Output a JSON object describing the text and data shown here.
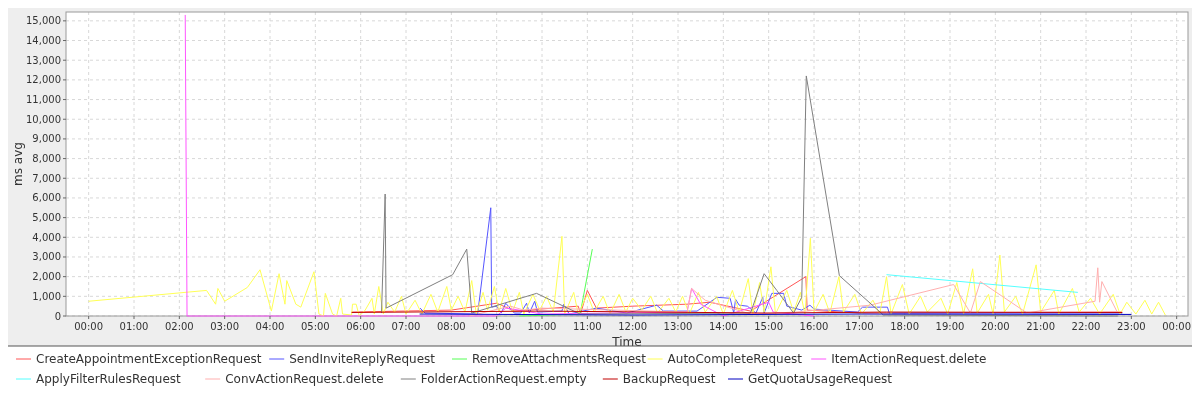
{
  "chart_data": {
    "type": "line",
    "xlabel": "Time",
    "ylabel": "ms avg",
    "legend": "bottom",
    "grid": true,
    "marker": "none",
    "line_style": "solid",
    "xlim": [
      -0.5,
      24.25
    ],
    "ylim": [
      0,
      15450
    ],
    "xticks": [
      {
        "value": 0,
        "label": "00:00"
      },
      {
        "value": 1,
        "label": "01:00"
      },
      {
        "value": 2,
        "label": "02:00"
      },
      {
        "value": 3,
        "label": "03:00"
      },
      {
        "value": 4,
        "label": "04:00"
      },
      {
        "value": 5,
        "label": "05:00"
      },
      {
        "value": 6,
        "label": "06:00"
      },
      {
        "value": 7,
        "label": "07:00"
      },
      {
        "value": 8,
        "label": "08:00"
      },
      {
        "value": 9,
        "label": "09:00"
      },
      {
        "value": 10,
        "label": "10:00"
      },
      {
        "value": 11,
        "label": "11:00"
      },
      {
        "value": 12,
        "label": "12:00"
      },
      {
        "value": 13,
        "label": "13:00"
      },
      {
        "value": 14,
        "label": "14:00"
      },
      {
        "value": 15,
        "label": "15:00"
      },
      {
        "value": 16,
        "label": "16:00"
      },
      {
        "value": 17,
        "label": "17:00"
      },
      {
        "value": 18,
        "label": "18:00"
      },
      {
        "value": 19,
        "label": "19:00"
      },
      {
        "value": 20,
        "label": "20:00"
      },
      {
        "value": 21,
        "label": "21:00"
      },
      {
        "value": 22,
        "label": "22:00"
      },
      {
        "value": 23,
        "label": "23:00"
      },
      {
        "value": 24,
        "label": "00:00"
      }
    ],
    "yticks": [
      0,
      {
        "value": 1000,
        "label": "1,000"
      },
      {
        "value": 2000,
        "label": "2,000"
      },
      {
        "value": 3000,
        "label": "3,000"
      },
      {
        "value": 4000,
        "label": "4,000"
      },
      {
        "value": 5000,
        "label": "5,000"
      },
      {
        "value": 6000,
        "label": "6,000"
      },
      {
        "value": 7000,
        "label": "7,000"
      },
      {
        "value": 8000,
        "label": "8,000"
      },
      {
        "value": 9000,
        "label": "9,000"
      },
      {
        "value": 10000,
        "label": "10,000"
      },
      {
        "value": 11000,
        "label": "11,000"
      },
      {
        "value": 12000,
        "label": "12,000"
      },
      {
        "value": 13000,
        "label": "13,000"
      },
      {
        "value": 14000,
        "label": "14,000"
      },
      {
        "value": 15000,
        "label": "15,000"
      }
    ],
    "series": [
      {
        "name": "CreateAppointmentExceptionRequest",
        "color": "#ff5555",
        "x": [
          5.8,
          8.0,
          9.0,
          9.4,
          10.8,
          10.85,
          11.0,
          11.2,
          12.0,
          13.2,
          13.7,
          14.6,
          15.82,
          15.85,
          17.0,
          22.8
        ],
        "values": [
          200,
          300,
          650,
          250,
          500,
          100,
          1300,
          400,
          500,
          600,
          700,
          250,
          2000,
          300,
          150,
          200
        ]
      },
      {
        "name": "SendInviteReplyRequest",
        "color": "#5555ff",
        "x": [
          7.31,
          7.42,
          8.58,
          8.87,
          8.89,
          9.0,
          9.1,
          9.2,
          9.39,
          9.53,
          9.66,
          9.72,
          9.84,
          9.9,
          10.44,
          10.48,
          10.6,
          11.2,
          11.87,
          12.53,
          12.68,
          13.42,
          13.86,
          14.15,
          14.23,
          14.27,
          14.35,
          14.53,
          14.72,
          14.87,
          14.9,
          15.07,
          15.33,
          15.4,
          15.73,
          15.91,
          16.0,
          16.96,
          17.07,
          17.62,
          17.66,
          22.8
        ],
        "values": [
          400,
          150,
          100,
          5500,
          450,
          500,
          150,
          650,
          150,
          150,
          650,
          150,
          750,
          200,
          250,
          600,
          100,
          400,
          150,
          550,
          250,
          250,
          950,
          900,
          150,
          850,
          550,
          500,
          150,
          950,
          150,
          1150,
          1150,
          500,
          300,
          550,
          350,
          200,
          450,
          450,
          150,
          150
        ]
      },
      {
        "name": "RemoveAttachmentsRequest",
        "color": "#55ff55",
        "x": [
          9.5,
          10.84,
          11.11
        ],
        "values": [
          0,
          100,
          3400
        ]
      },
      {
        "name": "AutoCompleteRequest",
        "color": "#ffff55",
        "x": [
          0,
          2.6,
          2.8,
          2.85,
          3.0,
          3.5,
          3.78,
          4.03,
          4.2,
          4.33,
          4.37,
          4.57,
          4.68,
          4.97,
          5.08,
          5.18,
          5.22,
          5.38,
          5.47,
          5.56,
          5.6,
          5.8,
          5.82,
          5.9,
          5.97,
          6.1,
          6.25,
          6.3,
          6.4,
          6.5,
          6.6,
          6.75,
          6.9,
          7.0,
          7.2,
          7.35,
          7.55,
          7.7,
          7.9,
          8.0,
          8.15,
          8.3,
          8.45,
          8.55,
          8.7,
          8.8,
          8.95,
          9.05,
          9.2,
          9.35,
          9.5,
          9.6,
          9.8,
          9.95,
          10.1,
          10.25,
          10.44,
          10.5,
          10.7,
          10.8,
          11.0,
          11.15,
          11.35,
          11.5,
          11.7,
          11.85,
          12.0,
          12.2,
          12.4,
          12.55,
          12.8,
          12.95,
          13.1,
          13.25,
          13.45,
          13.6,
          13.85,
          14.0,
          14.2,
          14.35,
          14.55,
          14.65,
          14.8,
          14.9,
          15.05,
          15.15,
          15.4,
          15.55,
          15.7,
          15.8,
          15.92,
          16.0,
          16.2,
          16.35,
          16.55,
          16.65,
          16.9,
          17.05,
          17.3,
          17.45,
          17.6,
          17.7,
          17.95,
          18.1,
          18.35,
          18.5,
          18.8,
          18.95,
          19.15,
          19.3,
          19.5,
          19.6,
          19.85,
          19.95,
          20.1,
          20.2,
          20.45,
          20.6,
          20.9,
          21.0,
          21.3,
          21.4,
          21.7,
          21.85,
          22.1,
          22.3,
          22.6,
          22.75,
          22.9,
          23.1,
          23.3,
          23.45,
          23.6,
          23.75
        ],
        "values": [
          750,
          1300,
          600,
          1400,
          750,
          1450,
          2350,
          250,
          2150,
          600,
          1800,
          600,
          450,
          2250,
          100,
          0,
          1150,
          100,
          0,
          900,
          100,
          50,
          600,
          600,
          0,
          300,
          900,
          100,
          1500,
          100,
          700,
          200,
          1000,
          100,
          800,
          100,
          1100,
          200,
          1500,
          300,
          1000,
          200,
          1800,
          100,
          1200,
          300,
          1500,
          200,
          1400,
          200,
          1200,
          100,
          1100,
          300,
          1000,
          200,
          4050,
          100,
          1200,
          100,
          1100,
          200,
          1000,
          100,
          1100,
          200,
          900,
          300,
          1000,
          150,
          900,
          200,
          1000,
          100,
          1200,
          200,
          1000,
          100,
          1300,
          200,
          1900,
          100,
          1700,
          200,
          2500,
          100,
          1300,
          200,
          1200,
          100,
          3950,
          200,
          1100,
          150,
          2000,
          200,
          1100,
          100,
          800,
          100,
          2000,
          100,
          1600,
          100,
          1000,
          200,
          900,
          100,
          1700,
          100,
          2400,
          150,
          1100,
          100,
          3100,
          200,
          1000,
          100,
          2600,
          200,
          1300,
          100,
          1400,
          200,
          900,
          100,
          1100,
          100,
          700,
          100,
          800,
          100,
          700,
          50
        ]
      },
      {
        "name": "ItemActionRequest.delete",
        "color": "#ff55ff",
        "x": [
          2.13,
          2.17,
          9.0,
          9.2,
          9.5,
          10.0,
          13.2,
          13.3,
          13.5,
          14.0,
          15.0,
          15.1,
          16.0
        ],
        "values": [
          15300,
          0,
          0,
          400,
          300,
          100,
          200,
          1400,
          600,
          0,
          700,
          200,
          0
        ]
      },
      {
        "name": "ApplyFilterRulesRequest",
        "color": "#55ffff",
        "x": [
          17.6,
          21.82
        ],
        "values": [
          2100,
          1200
        ]
      },
      {
        "name": "ConvActionRequest.delete",
        "color": "#ffafaf",
        "x": [
          8.4,
          9.3,
          9.6,
          10.0,
          13.2,
          13.3,
          13.6,
          14.6,
          15.6,
          17.24,
          19.08,
          19.45,
          19.67,
          20.7,
          22.2,
          22.26,
          22.3,
          22.35,
          22.7
        ],
        "values": [
          0,
          500,
          300,
          400,
          200,
          1400,
          800,
          100,
          200,
          550,
          1600,
          150,
          1750,
          150,
          750,
          2450,
          700,
          1750,
          150
        ]
      },
      {
        "name": "FolderActionRequest.empty",
        "color": "#808080",
        "x": [
          6.46,
          6.54,
          6.56,
          8.03,
          8.34,
          8.45,
          9.88,
          10.84,
          14.6,
          14.9,
          15.18,
          15.55,
          15.73,
          15.83,
          16.56,
          17.53,
          22.7
        ],
        "values": [
          150,
          6200,
          400,
          2100,
          3400,
          150,
          1150,
          100,
          150,
          2150,
          1300,
          150,
          950,
          12200,
          2050,
          50,
          0
        ]
      },
      {
        "name": "BackupRequest",
        "color": "#c00000",
        "x": [
          5.8,
          10.0,
          15.0,
          17.6,
          22.8
        ],
        "values": [
          180,
          250,
          150,
          200,
          180
        ]
      },
      {
        "name": "GetQuotaUsageRequest",
        "color": "#0000c0",
        "x": [
          7.3,
          12.0,
          17.0,
          23.0
        ],
        "values": [
          100,
          50,
          100,
          80
        ]
      }
    ]
  }
}
